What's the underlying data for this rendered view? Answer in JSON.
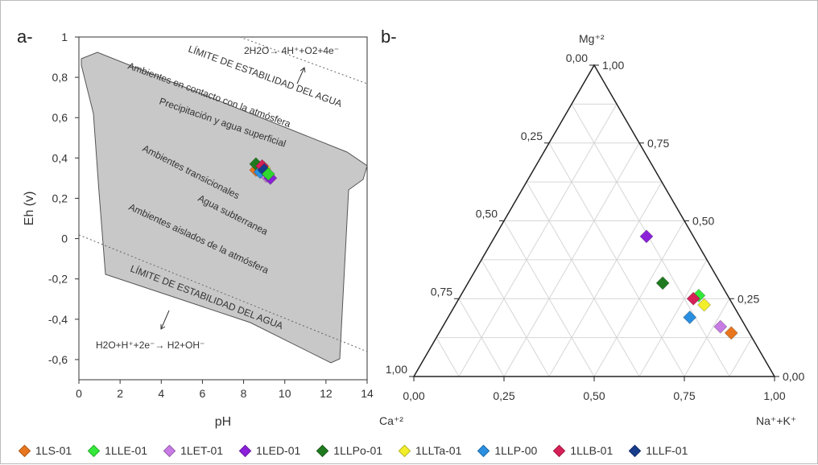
{
  "chart_data": [
    {
      "type": "scatter",
      "panel_label": "a-",
      "xlabel": "pH",
      "ylabel": "Eh (v)",
      "xlim": [
        0,
        14
      ],
      "ylim": [
        -0.7,
        1.0
      ],
      "xticks": [
        "0",
        "2",
        "4",
        "6",
        "8",
        "10",
        "12",
        "14"
      ],
      "yticks": [
        "1",
        "0,8",
        "0,6",
        "0,4",
        "0,2",
        "0",
        "-0,2",
        "-0,4",
        "-0,6"
      ],
      "grid": false,
      "stability_limits": {
        "upper_label": "LÍMITE DE ESTABILIDAD DEL AGUA",
        "lower_label": "LÍMITE DE ESTABILIDAD DEL AGUA",
        "upper_reaction": "2H2O→ 4H⁺+O2+4e⁻",
        "lower_reaction": "H2O+H⁺+2e⁻→ H2+OH⁻"
      },
      "region_annotations": [
        "Ambientes en contacto con la atmósfera",
        "Precipitación y agua superficial",
        "Ambientes transicionales",
        "Agua subterranea",
        "Ambientes aislados de la atmósfera"
      ],
      "series": [
        {
          "name": "1LS-01",
          "color": "#e8761f",
          "x": [
            8.6
          ],
          "y": [
            0.34
          ]
        },
        {
          "name": "1LLE-01",
          "color": "#33e83a",
          "x": [
            8.8
          ],
          "y": [
            0.35
          ]
        },
        {
          "name": "1LET-01",
          "color": "#c77be3",
          "x": [
            9.1
          ],
          "y": [
            0.31
          ]
        },
        {
          "name": "1LED-01",
          "color": "#8b20d8",
          "x": [
            9.3
          ],
          "y": [
            0.3
          ]
        },
        {
          "name": "1LLPo-01",
          "color": "#1f7a1f",
          "x": [
            8.6
          ],
          "y": [
            0.37
          ]
        },
        {
          "name": "1LLTa-01",
          "color": "#f3ee2a",
          "x": [
            9.0
          ],
          "y": [
            0.35
          ]
        },
        {
          "name": "1LLP-00",
          "color": "#2a8fe0",
          "x": [
            8.8
          ],
          "y": [
            0.33
          ]
        },
        {
          "name": "1LLB-01",
          "color": "#d62058",
          "x": [
            8.9
          ],
          "y": [
            0.36
          ]
        },
        {
          "name": "1LLF-01",
          "color": "#173c8c",
          "x": [
            9.0
          ],
          "y": [
            0.34
          ]
        },
        {
          "name": "",
          "color": "#2fd82f",
          "x": [
            9.2
          ],
          "y": [
            0.32
          ]
        }
      ]
    },
    {
      "type": "ternary",
      "panel_label": "b-",
      "apex_labels": {
        "top": "Mg⁺²",
        "left": "Ca⁺²",
        "right": "Na⁺+K⁺"
      },
      "bottom_ticks": [
        "0,00",
        "0,25",
        "0,50",
        "0,75",
        "1,00"
      ],
      "left_ticks": [
        "1,00",
        "0,75",
        "0,50",
        "0,25",
        "0,00"
      ],
      "right_ticks": [
        "1,00",
        "0,75",
        "0,50",
        "0,25",
        "0,00"
      ],
      "grid": true,
      "points": [
        {
          "name": "1LED-01",
          "color": "#8b20d8",
          "mg": 0.45,
          "ca": 0.13,
          "na_k": 0.42
        },
        {
          "name": "1LLPo-01",
          "color": "#1f7a1f",
          "mg": 0.3,
          "ca": 0.16,
          "na_k": 0.54
        },
        {
          "name": "1LLE-01",
          "color": "#33e83a",
          "mg": 0.26,
          "ca": 0.08,
          "na_k": 0.66
        },
        {
          "name": "1LLB-01",
          "color": "#d62058",
          "mg": 0.25,
          "ca": 0.1,
          "na_k": 0.65
        },
        {
          "name": "1LLTa-01",
          "color": "#f3ee2a",
          "mg": 0.23,
          "ca": 0.08,
          "na_k": 0.69
        },
        {
          "name": "1LLP-00",
          "color": "#2a8fe0",
          "mg": 0.19,
          "ca": 0.14,
          "na_k": 0.67
        },
        {
          "name": "1LET-01",
          "color": "#c77be3",
          "mg": 0.16,
          "ca": 0.07,
          "na_k": 0.77
        },
        {
          "name": "1LS-01",
          "color": "#e8761f",
          "mg": 0.14,
          "ca": 0.05,
          "na_k": 0.81
        }
      ]
    }
  ],
  "legend": [
    {
      "label": "1LS-01",
      "color": "#e8761f"
    },
    {
      "label": "1LLE-01",
      "color": "#33e83a"
    },
    {
      "label": "1LET-01",
      "color": "#c77be3"
    },
    {
      "label": "1LED-01",
      "color": "#8b20d8"
    },
    {
      "label": "1LLPo-01",
      "color": "#1f7a1f"
    },
    {
      "label": "1LLTa-01",
      "color": "#f3ee2a"
    },
    {
      "label": "1LLP-00",
      "color": "#2a8fe0"
    },
    {
      "label": "1LLB-01",
      "color": "#d62058"
    },
    {
      "label": "1LLF-01",
      "color": "#173c8c"
    }
  ]
}
